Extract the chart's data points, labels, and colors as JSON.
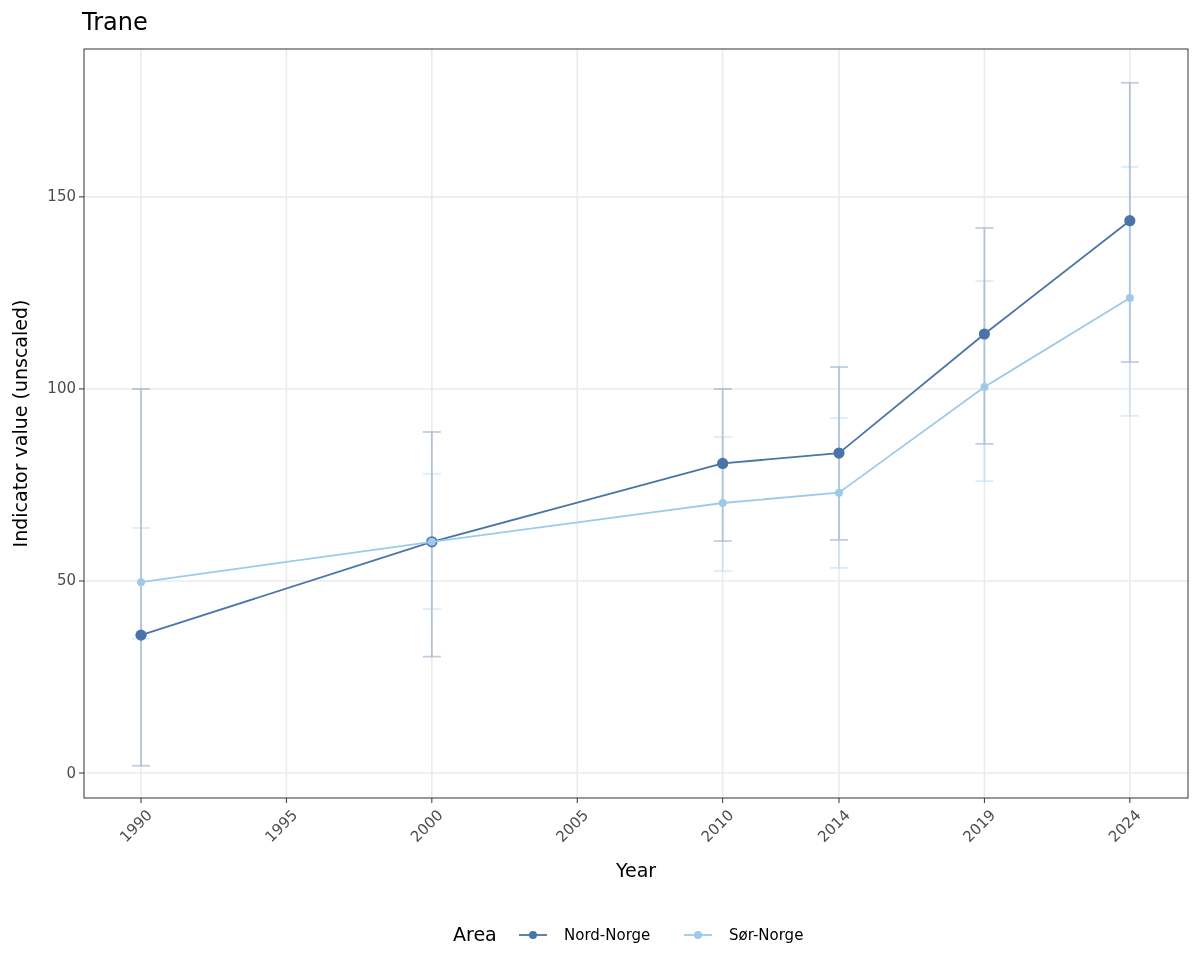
{
  "chart_data": {
    "type": "line",
    "title": "Trane",
    "xlabel": "Year",
    "ylabel": "Indicator value (unscaled)",
    "legend_title": "Area",
    "x": [
      1990,
      2000,
      2010,
      2014,
      2019,
      2024
    ],
    "series": [
      {
        "name": "Nord-Norge",
        "color": "#4a74a8",
        "values": [
          35.9,
          60.2,
          80.6,
          83.3,
          114.3,
          143.8
        ],
        "errors": [
          [
            1.9,
            100
          ],
          [
            30.3,
            88.8
          ],
          [
            60.4,
            100
          ],
          [
            60.7,
            105.7
          ],
          [
            85.7,
            141.9
          ],
          [
            107,
            179.7
          ]
        ]
      },
      {
        "name": "Sør-Norge",
        "color": "#9ecae9",
        "values": [
          49.7,
          60.2,
          70.3,
          73.0,
          100.5,
          123.7
        ],
        "errors": [
          [
            35,
            63.8
          ],
          [
            42.7,
            77.9
          ],
          [
            52.6,
            87.5
          ],
          [
            53.4,
            92.4
          ],
          [
            76,
            128.1
          ],
          [
            93,
            157.8
          ]
        ]
      }
    ],
    "xlim": [
      1988.04,
      2026
    ],
    "xticks": [
      1990,
      1995,
      2000,
      2005,
      2010,
      2014,
      2019,
      2024
    ],
    "ylim": [
      -6.5,
      188.5
    ],
    "yticks": [
      0,
      50,
      100,
      150
    ],
    "grid": true,
    "legend": "bottom",
    "marker": "circle",
    "line_style": "solid"
  }
}
